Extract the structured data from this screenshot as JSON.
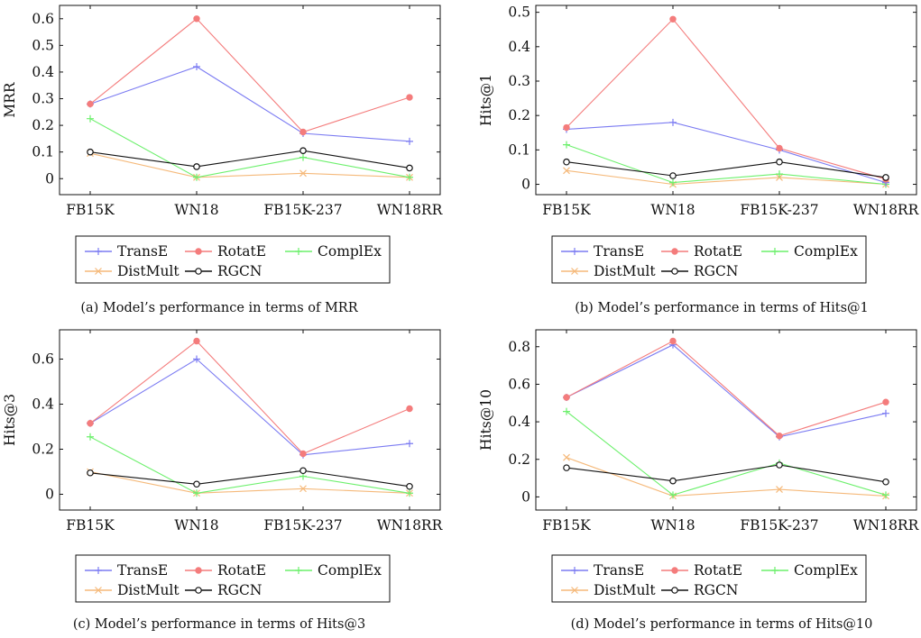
{
  "figure": {
    "legend_entries": [
      {
        "name": "TransE",
        "color": "#7b7bf2",
        "marker": "plus"
      },
      {
        "name": "RotatE",
        "color": "#f47c7c",
        "marker": "circle-filled"
      },
      {
        "name": "ComplEx",
        "color": "#6cf06c",
        "marker": "plus"
      },
      {
        "name": "DistMult",
        "color": "#f5b97a",
        "marker": "x"
      },
      {
        "name": "RGCN",
        "color": "#111111",
        "marker": "circle-open"
      }
    ]
  },
  "chart_data": [
    {
      "type": "line",
      "caption": "(a) Model’s performance in terms of MRR",
      "ylabel": "MRR",
      "xlabel": "",
      "categories": [
        "FB15K",
        "WN18",
        "FB15K-237",
        "WN18RR"
      ],
      "ylim": [
        -0.06,
        0.65
      ],
      "yticks": [
        0,
        0.1,
        0.2,
        0.3,
        0.4,
        0.5,
        0.6
      ],
      "ytick_labels": [
        "0",
        "0.1",
        "0.2",
        "0.3",
        "0.4",
        "0.5",
        "0.6"
      ],
      "grid": false,
      "legend_position": "below",
      "series": [
        {
          "name": "TransE",
          "values": [
            0.28,
            0.42,
            0.17,
            0.14
          ]
        },
        {
          "name": "RotatE",
          "values": [
            0.28,
            0.6,
            0.175,
            0.305
          ]
        },
        {
          "name": "ComplEx",
          "values": [
            0.225,
            0.005,
            0.08,
            0.005
          ]
        },
        {
          "name": "DistMult",
          "values": [
            0.095,
            0.005,
            0.02,
            0.005
          ]
        },
        {
          "name": "RGCN",
          "values": [
            0.1,
            0.045,
            0.105,
            0.04
          ]
        }
      ]
    },
    {
      "type": "line",
      "caption": "(b) Model’s performance in terms of Hits@1",
      "ylabel": "Hits@1",
      "xlabel": "",
      "categories": [
        "FB15K",
        "WN18",
        "FB15K-237",
        "WN18RR"
      ],
      "ylim": [
        -0.03,
        0.52
      ],
      "yticks": [
        0,
        0.1,
        0.2,
        0.3,
        0.4,
        0.5
      ],
      "ytick_labels": [
        "0",
        "0.1",
        "0.2",
        "0.3",
        "0.4",
        "0.5"
      ],
      "grid": false,
      "legend_position": "below",
      "series": [
        {
          "name": "TransE",
          "values": [
            0.16,
            0.18,
            0.1,
            0.005
          ]
        },
        {
          "name": "RotatE",
          "values": [
            0.165,
            0.48,
            0.105,
            0.015
          ]
        },
        {
          "name": "ComplEx",
          "values": [
            0.115,
            0.005,
            0.03,
            0.0
          ]
        },
        {
          "name": "DistMult",
          "values": [
            0.04,
            0.0,
            0.02,
            0.0
          ]
        },
        {
          "name": "RGCN",
          "values": [
            0.065,
            0.025,
            0.065,
            0.02
          ]
        }
      ]
    },
    {
      "type": "line",
      "caption": "(c) Model’s performance in terms of Hits@3",
      "ylabel": "Hits@3",
      "xlabel": "",
      "categories": [
        "FB15K",
        "WN18",
        "FB15K-237",
        "WN18RR"
      ],
      "ylim": [
        -0.07,
        0.73
      ],
      "yticks": [
        0,
        0.2,
        0.4,
        0.6
      ],
      "ytick_labels": [
        "0",
        "0.2",
        "0.4",
        "0.6"
      ],
      "grid": false,
      "legend_position": "below",
      "series": [
        {
          "name": "TransE",
          "values": [
            0.315,
            0.6,
            0.175,
            0.225
          ]
        },
        {
          "name": "RotatE",
          "values": [
            0.315,
            0.68,
            0.18,
            0.38
          ]
        },
        {
          "name": "ComplEx",
          "values": [
            0.255,
            0.005,
            0.08,
            0.005
          ]
        },
        {
          "name": "DistMult",
          "values": [
            0.1,
            0.005,
            0.025,
            0.005
          ]
        },
        {
          "name": "RGCN",
          "values": [
            0.095,
            0.045,
            0.105,
            0.035
          ]
        }
      ]
    },
    {
      "type": "line",
      "caption": "(d) Model’s performance in terms of Hits@10",
      "ylabel": "Hits@10",
      "xlabel": "",
      "categories": [
        "FB15K",
        "WN18",
        "FB15K-237",
        "WN18RR"
      ],
      "ylim": [
        -0.07,
        0.89
      ],
      "yticks": [
        0,
        0.2,
        0.4,
        0.6,
        0.8
      ],
      "ytick_labels": [
        "0",
        "0.2",
        "0.4",
        "0.6",
        "0.8"
      ],
      "grid": false,
      "legend_position": "below",
      "series": [
        {
          "name": "TransE",
          "values": [
            0.53,
            0.81,
            0.32,
            0.445
          ]
        },
        {
          "name": "RotatE",
          "values": [
            0.53,
            0.83,
            0.325,
            0.505
          ]
        },
        {
          "name": "ComplEx",
          "values": [
            0.455,
            0.01,
            0.18,
            0.01
          ]
        },
        {
          "name": "DistMult",
          "values": [
            0.21,
            0.005,
            0.04,
            0.005
          ]
        },
        {
          "name": "RGCN",
          "values": [
            0.155,
            0.085,
            0.17,
            0.08
          ]
        }
      ]
    }
  ]
}
